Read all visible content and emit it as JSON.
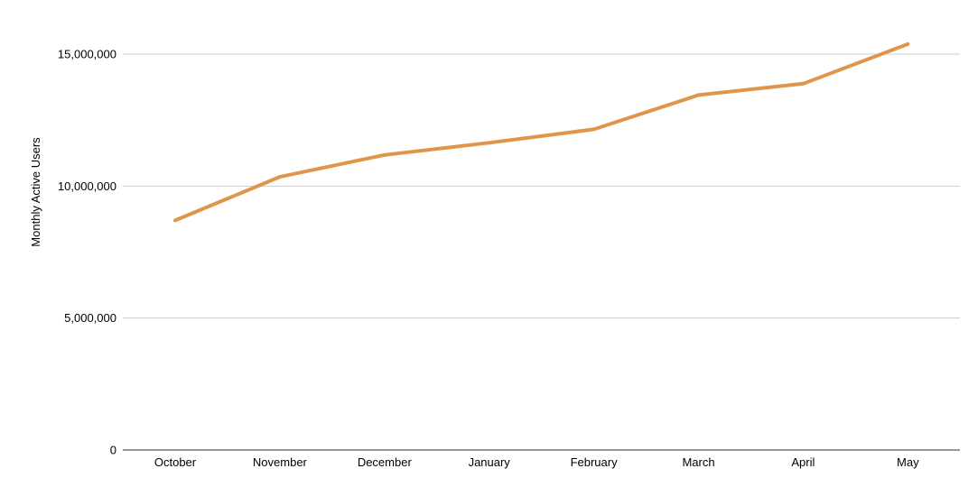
{
  "chart_data": {
    "type": "line",
    "title": "",
    "xlabel": "",
    "ylabel": "Monthly Active Users",
    "categories": [
      "October",
      "November",
      "December",
      "January",
      "February",
      "March",
      "April",
      "May"
    ],
    "series": [
      {
        "values": [
          8700000,
          10350000,
          11180000,
          11640000,
          12150000,
          13450000,
          13880000,
          15380000
        ]
      }
    ],
    "ylim": [
      0,
      15000000
    ],
    "yticks": [
      {
        "value": 0,
        "label": "0"
      },
      {
        "value": 5000000,
        "label": "5,000,000"
      },
      {
        "value": 10000000,
        "label": "10,000,000"
      },
      {
        "value": 15000000,
        "label": "15,000,000"
      }
    ],
    "grid": true,
    "legend": "none",
    "colors": {
      "line": "#e0964a",
      "grid": "#cccccc",
      "axis": "#333333"
    }
  }
}
